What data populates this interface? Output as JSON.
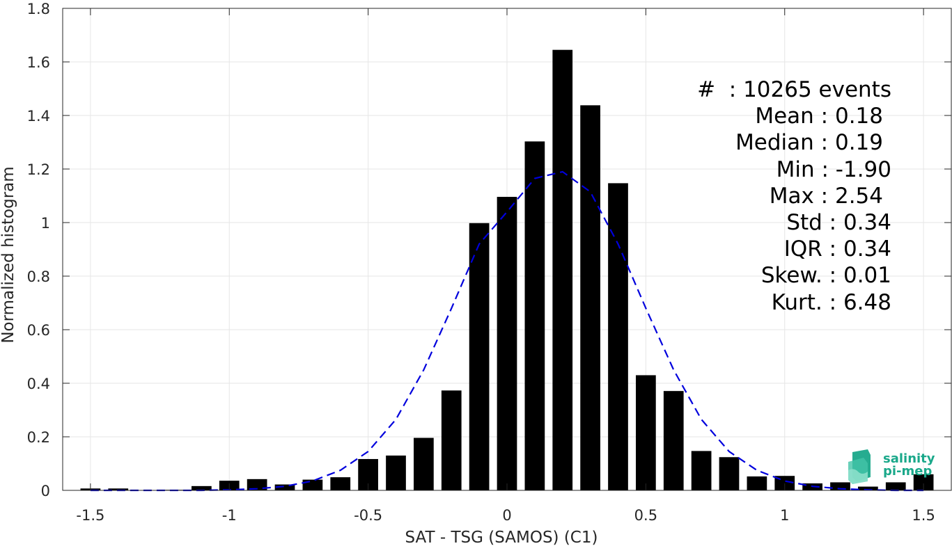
{
  "chart_data": {
    "type": "bar",
    "xlabel": "SAT - TSG (SAMOS) (C1)",
    "ylabel": "Normalized histogram",
    "xlim": [
      -1.6,
      1.6
    ],
    "ylim": [
      0,
      1.8
    ],
    "x_ticks": [
      -1.5,
      -1,
      -0.5,
      0,
      0.5,
      1,
      1.5
    ],
    "x_tick_labels": [
      "-1.5",
      "-1",
      "-0.5",
      "0",
      "0.5",
      "1",
      "1.5"
    ],
    "y_ticks": [
      0,
      0.2,
      0.4,
      0.6,
      0.8,
      1,
      1.2,
      1.4,
      1.6,
      1.8
    ],
    "y_tick_labels": [
      "0",
      "0.2",
      "0.4",
      "0.6",
      "0.8",
      "1",
      "1.2",
      "1.4",
      "1.6",
      "1.8"
    ],
    "grid": true,
    "bin_width": 0.1,
    "bin_centers": [
      -1.5,
      -1.4,
      -1.3,
      -1.2,
      -1.1,
      -1.0,
      -0.9,
      -0.8,
      -0.7,
      -0.6,
      -0.5,
      -0.4,
      -0.3,
      -0.2,
      -0.1,
      0.0,
      0.1,
      0.2,
      0.3,
      0.4,
      0.5,
      0.6,
      0.7,
      0.8,
      0.9,
      1.0,
      1.1,
      1.2,
      1.3,
      1.4,
      1.5
    ],
    "values": [
      0.007,
      0.007,
      0.001,
      0.002,
      0.016,
      0.036,
      0.042,
      0.022,
      0.04,
      0.049,
      0.117,
      0.13,
      0.196,
      0.373,
      0.998,
      1.096,
      1.303,
      1.645,
      1.438,
      1.147,
      0.43,
      0.371,
      0.147,
      0.124,
      0.052,
      0.054,
      0.026,
      0.03,
      0.014,
      0.03,
      0.06
    ],
    "bar_color": "#000000",
    "fit_curve": {
      "style": "dashed",
      "color": "#0000dd",
      "x": [
        -1.5,
        -1.4,
        -1.3,
        -1.2,
        -1.1,
        -1.0,
        -0.9,
        -0.8,
        -0.7,
        -0.6,
        -0.5,
        -0.4,
        -0.3,
        -0.2,
        -0.1,
        0.0,
        0.1,
        0.2,
        0.3,
        0.4,
        0.5,
        0.6,
        0.7,
        0.8,
        0.9,
        1.0,
        1.1,
        1.2,
        1.3,
        1.4,
        1.5
      ],
      "y": [
        0.0,
        0.0,
        0.0,
        0.0,
        0.0,
        0.002,
        0.006,
        0.015,
        0.035,
        0.075,
        0.145,
        0.265,
        0.45,
        0.68,
        0.92,
        1.04,
        1.165,
        1.19,
        1.115,
        0.92,
        0.68,
        0.45,
        0.265,
        0.145,
        0.075,
        0.035,
        0.015,
        0.006,
        0.002,
        0.0,
        0.0
      ]
    }
  },
  "stats": [
    "#  : 10265 events",
    "Mean : 0.18",
    "Median : 0.19",
    "Min : -1.90",
    "Max : 2.54",
    "Std : 0.34",
    "IQR : 0.34",
    "Skew. : 0.01",
    "Kurt. : 6.48"
  ],
  "logo": {
    "line1": "salinity",
    "line2": "pi-mep",
    "color": "#1aa88a"
  }
}
